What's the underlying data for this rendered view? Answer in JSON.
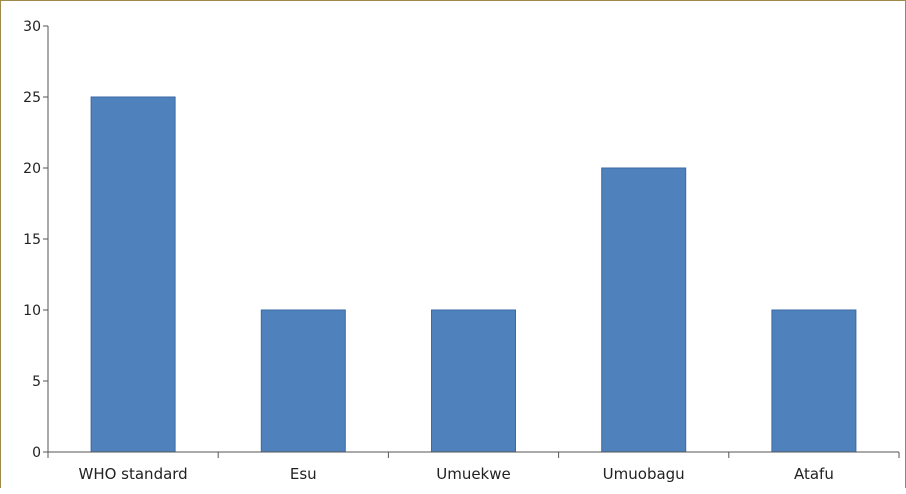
{
  "chart_data": {
    "type": "bar",
    "categories": [
      "WHO standard",
      "Esu",
      "Umuekwe",
      "Umuobagu",
      "Atafu"
    ],
    "values": [
      25,
      10,
      10,
      20,
      10
    ],
    "ylim": [
      0,
      30
    ],
    "yticks": [
      0,
      5,
      10,
      15,
      20,
      25,
      30
    ],
    "title": "",
    "xlabel": "",
    "ylabel": "",
    "grid": false,
    "legend": "none",
    "colors": {
      "bar_fill": "#4f81bd",
      "bar_stroke": "#3a6aa5",
      "axis": "#555555",
      "frame": "#a08a4a"
    }
  }
}
